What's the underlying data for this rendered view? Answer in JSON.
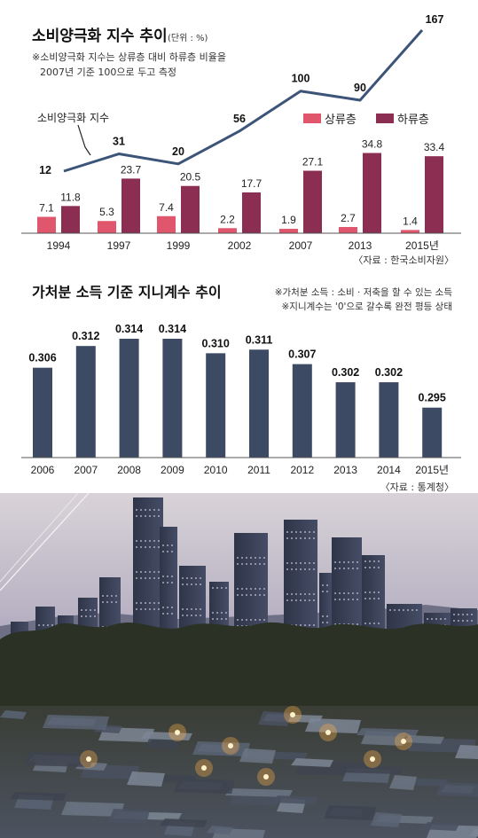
{
  "chart_data": [
    {
      "type": "bar+line",
      "title": "소비양극화 지수 추이",
      "unit_note": "(단위 : %)",
      "footnote_lines": [
        "※소비양극화 지수는 상류층 대비 하류층 비율을",
        "2007년 기준 100으로 두고 측정"
      ],
      "line_label": "소비양극화 지수",
      "categories": [
        "1994",
        "1997",
        "1999",
        "2002",
        "2007",
        "2013",
        "2015년"
      ],
      "line": {
        "name": "소비양극화 지수",
        "values": [
          12,
          31,
          20,
          56,
          100,
          90,
          167
        ],
        "labels": [
          "12",
          "31",
          "20",
          "56",
          "100",
          "90",
          "167"
        ]
      },
      "series": [
        {
          "name": "상류층",
          "values": [
            7.1,
            5.3,
            7.4,
            2.2,
            1.9,
            2.7,
            1.4
          ],
          "labels": [
            "7.1",
            "5.3",
            "7.4",
            "2.2",
            "1.9",
            "2.7",
            "1.4"
          ],
          "color": "#e0566c"
        },
        {
          "name": "하류층",
          "values": [
            11.8,
            23.7,
            20.5,
            17.7,
            27.1,
            34.8,
            33.4
          ],
          "labels": [
            "11.8",
            "23.7",
            "20.5",
            "17.7",
            "27.1",
            "34.8",
            "33.4"
          ],
          "color": "#8b2e52"
        }
      ],
      "line_color": "#3b5478",
      "source": "〈자료 : 한국소비자원〉"
    },
    {
      "type": "bar",
      "title": "가처분 소득 기준 지니계수 추이",
      "notes": [
        "※가처분 소득 : 소비 · 저축을 할 수 있는 소득",
        "※지니계수는 '0'으로 갈수록 완전 평등 상태"
      ],
      "categories": [
        "2006",
        "2007",
        "2008",
        "2009",
        "2010",
        "2011",
        "2012",
        "2013",
        "2014",
        "2015년"
      ],
      "values": [
        0.306,
        0.312,
        0.314,
        0.314,
        0.31,
        0.311,
        0.307,
        0.302,
        0.302,
        0.295
      ],
      "labels": [
        "0.306",
        "0.312",
        "0.314",
        "0.314",
        "0.310",
        "0.311",
        "0.307",
        "0.302",
        "0.302",
        "0.295"
      ],
      "color": "#3d4a63",
      "source": "〈자료 : 통계청〉"
    }
  ],
  "photo": {
    "description_icon": "city-skyline-photo"
  }
}
